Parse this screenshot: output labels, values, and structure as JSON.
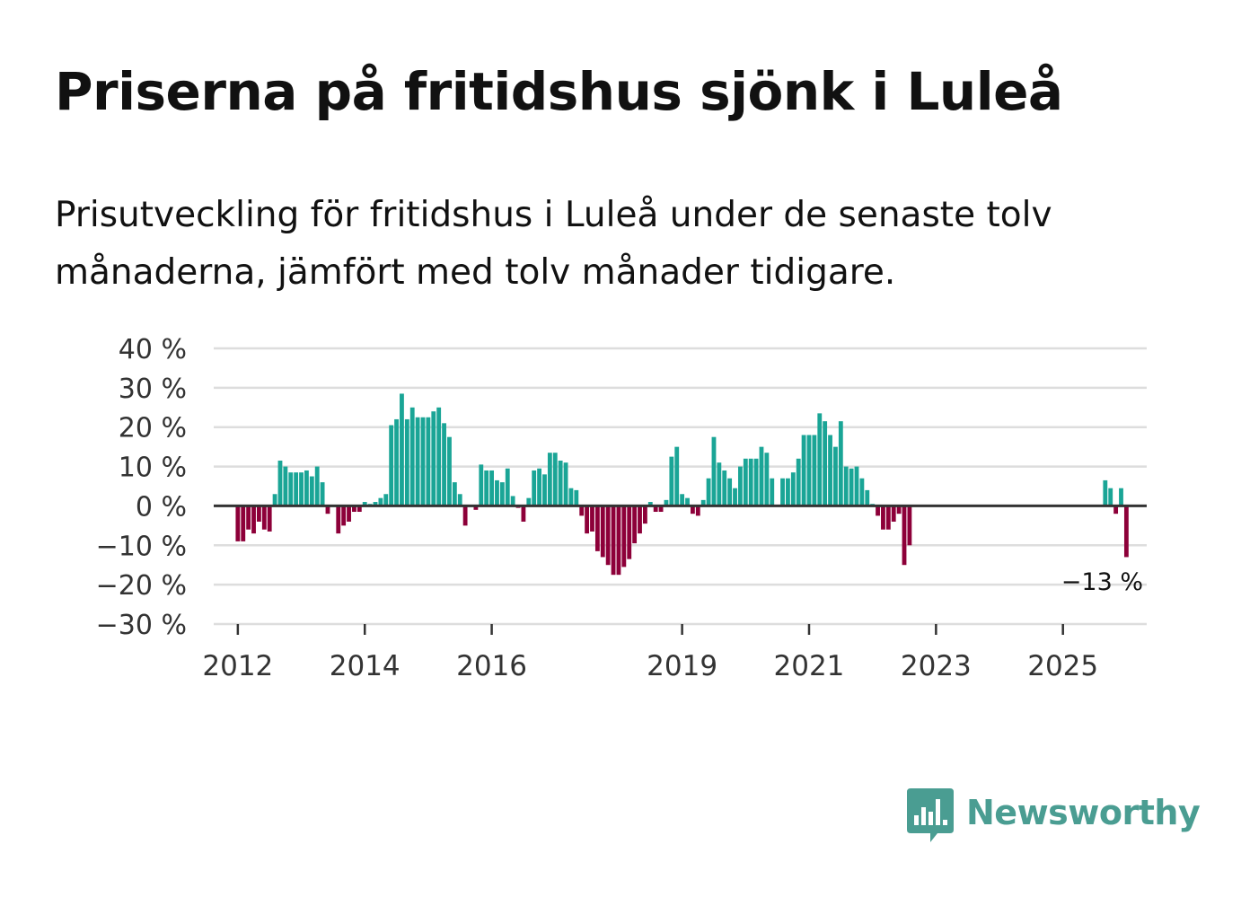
{
  "title": "Priserna på fritidshus sjönk i Luleå",
  "subtitle": "Prisutveckling för fritidshus i Luleå under de senaste tolv månaderna, jämfört med tolv månader tidigare.",
  "brand": {
    "name": "Newsworthy",
    "color": "#4a9d92",
    "icon": "newsworthy-bar-chart-icon"
  },
  "colors": {
    "positive": "#1aa596",
    "negative": "#8d0039",
    "gridline": "#dddddd",
    "zero_line": "#333333",
    "axis_text": "#333333"
  },
  "chart_data": {
    "type": "bar",
    "title": "Priserna på fritidshus sjönk i Luleå",
    "xlabel": "",
    "ylabel": "",
    "ylim": [
      -30,
      40
    ],
    "xlim": [
      2011.62,
      2026.32
    ],
    "grid": true,
    "y_ticks": [
      40,
      30,
      20,
      10,
      0,
      -10,
      -20,
      -30
    ],
    "y_tick_labels": [
      "40 %",
      "30 %",
      "20 %",
      "10 %",
      "0 %",
      "−10 %",
      "−20 %",
      "−30 %"
    ],
    "x_ticks": [
      2012,
      2014,
      2016,
      2019,
      2021,
      2023,
      2025
    ],
    "x_tick_labels": [
      "2012",
      "2014",
      "2016",
      "2019",
      "2021",
      "2023",
      "2025"
    ],
    "annotation": {
      "text": "−13 %",
      "x": 2025.75,
      "y": -13
    },
    "start": {
      "year": 2012,
      "month": 1
    },
    "frequency": "monthly",
    "values": [
      -9,
      -9,
      -6,
      -7,
      -4,
      -6,
      -6.5,
      3,
      11.5,
      10,
      8.5,
      8.5,
      8.5,
      9,
      7.5,
      10,
      6,
      -2,
      null,
      -7,
      -5,
      -4,
      -1.5,
      -1.5,
      1,
      0.5,
      1,
      2,
      3,
      20.5,
      22,
      28.5,
      22,
      25,
      22.5,
      22.5,
      22.5,
      24,
      25,
      21,
      17.5,
      6,
      3,
      -5,
      null,
      -1,
      10.5,
      9,
      9,
      6.5,
      6,
      9.5,
      2.5,
      -0.5,
      -4,
      2,
      9,
      9.5,
      8,
      13.5,
      13.5,
      11.5,
      11,
      4.5,
      4,
      -2.5,
      -7,
      -6.5,
      -11.5,
      -13,
      -15,
      -17.5,
      -17.5,
      -15.5,
      -13.5,
      -9.5,
      -7,
      -4.5,
      1,
      -1.5,
      -1.5,
      1.5,
      12.5,
      15,
      3,
      2,
      -2,
      -2.5,
      1.5,
      7,
      17.5,
      11,
      9,
      7,
      4.5,
      10,
      12,
      12,
      12,
      15,
      13.5,
      7,
      null,
      7,
      7,
      8.5,
      12,
      18,
      18,
      18,
      23.5,
      21.5,
      18,
      15,
      21.5,
      10,
      9.5,
      10,
      7,
      4,
      0.5,
      -2.5,
      -6,
      -6,
      -4,
      -2,
      -15,
      -10,
      null,
      null,
      null,
      null,
      null,
      null,
      null,
      null,
      null,
      null,
      null,
      null,
      null,
      null,
      null,
      null,
      null,
      null,
      null,
      null,
      null,
      null,
      null,
      null,
      null,
      null,
      null,
      null,
      null,
      null,
      null,
      null,
      null,
      null,
      null,
      null,
      6.5,
      4.5,
      -2,
      4.5,
      -13
    ]
  }
}
